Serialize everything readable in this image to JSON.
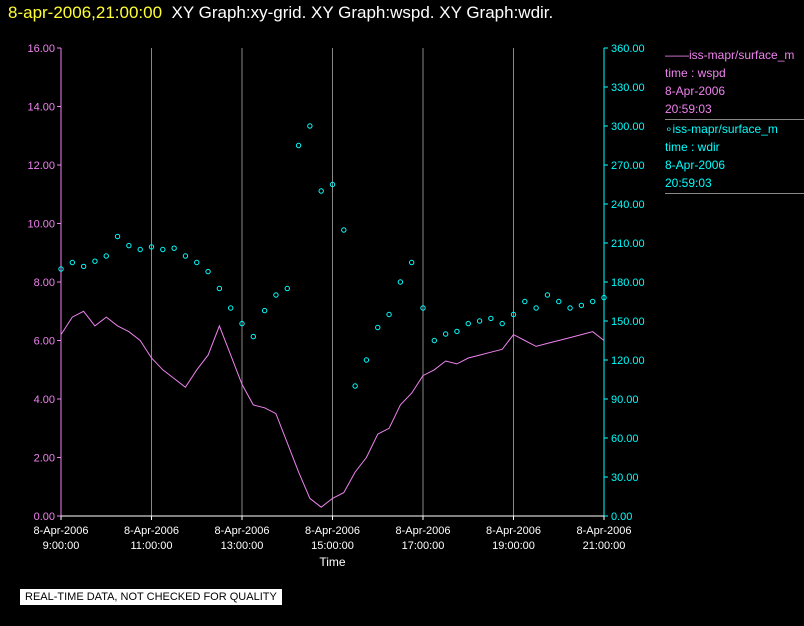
{
  "header": {
    "timestamp": "8-apr-2006,21:00:00",
    "graphs": "XY Graph:xy-grid.  XY Graph:wspd.  XY Graph:wdir."
  },
  "colors": {
    "wspd": "#ee82ee",
    "wdir": "#00ffff",
    "timestamp": "#ffff33",
    "grid": "#888888",
    "text": "#ffffff"
  },
  "legend": [
    {
      "symbol": "——",
      "name": "iss-mapr/surface_m",
      "label": "time : wspd",
      "date": "8-Apr-2006",
      "time": "20:59:03",
      "color": "#ee82ee"
    },
    {
      "symbol": "∘",
      "name": "iss-mapr/surface_m",
      "label": "time : wdir",
      "date": "8-Apr-2006",
      "time": "20:59:03",
      "color": "#00ffff"
    }
  ],
  "footer_note": "REAL-TIME DATA, NOT CHECKED FOR QUALITY",
  "chart_data": {
    "type": "line",
    "xlabel": "Time",
    "xlim": [
      9.0,
      21.0
    ],
    "x_ticks": [
      {
        "value": 9,
        "date": "8-Apr-2006",
        "time": "9:00:00"
      },
      {
        "value": 11,
        "date": "8-Apr-2006",
        "time": "11:00:00"
      },
      {
        "value": 13,
        "date": "8-Apr-2006",
        "time": "13:00:00"
      },
      {
        "value": 15,
        "date": "8-Apr-2006",
        "time": "15:00:00"
      },
      {
        "value": 17,
        "date": "8-Apr-2006",
        "time": "17:00:00"
      },
      {
        "value": 19,
        "date": "8-Apr-2006",
        "time": "19:00:00"
      },
      {
        "value": 21,
        "date": "8-Apr-2006",
        "time": "21:00:00"
      }
    ],
    "y_left": {
      "range": [
        0,
        16
      ],
      "ticks": [
        "0.00",
        "2.00",
        "4.00",
        "6.00",
        "8.00",
        "10.00",
        "12.00",
        "14.00",
        "16.00"
      ]
    },
    "y_right": {
      "range": [
        0,
        360
      ],
      "ticks": [
        "0.00",
        "30.00",
        "60.00",
        "90.00",
        "120.00",
        "150.00",
        "180.00",
        "210.00",
        "240.00",
        "270.00",
        "300.00",
        "330.00",
        "360.00"
      ]
    },
    "grid": "vertical",
    "series": [
      {
        "legend_label": "time : wspd",
        "axis": "left",
        "style": "line",
        "x": [
          9.0,
          9.25,
          9.5,
          9.75,
          10.0,
          10.25,
          10.5,
          10.75,
          11.0,
          11.25,
          11.5,
          11.75,
          12.0,
          12.25,
          12.5,
          12.75,
          13.0,
          13.25,
          13.5,
          13.75,
          14.0,
          14.25,
          14.5,
          14.75,
          15.0,
          15.25,
          15.5,
          15.75,
          16.0,
          16.25,
          16.5,
          16.75,
          17.0,
          17.25,
          17.5,
          17.75,
          18.0,
          18.25,
          18.5,
          18.75,
          19.0,
          19.25,
          19.5,
          19.75,
          20.0,
          20.25,
          20.5,
          20.75,
          21.0
        ],
        "values": [
          6.2,
          6.8,
          7.0,
          6.5,
          6.8,
          6.5,
          6.3,
          6.0,
          5.4,
          5.0,
          4.7,
          4.4,
          5.0,
          5.5,
          6.5,
          5.5,
          4.5,
          3.8,
          3.7,
          3.5,
          2.5,
          1.5,
          0.6,
          0.3,
          0.6,
          0.8,
          1.5,
          2.0,
          2.8,
          3.0,
          3.8,
          4.2,
          4.8,
          5.0,
          5.3,
          5.2,
          5.4,
          5.5,
          5.6,
          5.7,
          6.2,
          6.0,
          5.8,
          5.9,
          6.0,
          6.1,
          6.2,
          6.3,
          6.0
        ]
      },
      {
        "legend_label": "time : wdir",
        "axis": "right",
        "style": "points",
        "x": [
          9.0,
          9.25,
          9.5,
          9.75,
          10.0,
          10.25,
          10.5,
          10.75,
          11.0,
          11.25,
          11.5,
          11.75,
          12.0,
          12.25,
          12.5,
          12.75,
          13.0,
          13.25,
          13.5,
          13.75,
          14.0,
          14.25,
          14.5,
          14.75,
          15.0,
          15.25,
          15.5,
          15.75,
          16.0,
          16.25,
          16.5,
          16.75,
          17.0,
          17.25,
          17.5,
          17.75,
          18.0,
          18.25,
          18.5,
          18.75,
          19.0,
          19.25,
          19.5,
          19.75,
          20.0,
          20.25,
          20.5,
          20.75,
          21.0
        ],
        "values": [
          190,
          195,
          192,
          196,
          200,
          215,
          208,
          205,
          207,
          205,
          206,
          200,
          195,
          188,
          175,
          160,
          148,
          138,
          158,
          170,
          175,
          285,
          300,
          250,
          255,
          220,
          100,
          120,
          145,
          155,
          180,
          195,
          160,
          135,
          140,
          142,
          148,
          150,
          152,
          148,
          155,
          165,
          160,
          170,
          165,
          160,
          162,
          165,
          168
        ]
      }
    ]
  }
}
